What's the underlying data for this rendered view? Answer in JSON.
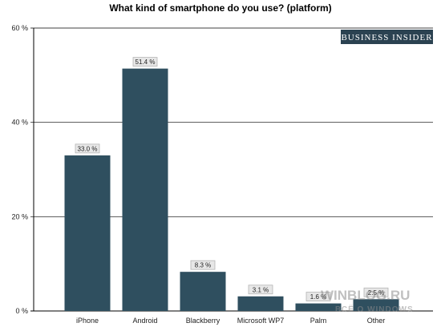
{
  "chart_data": {
    "type": "bar",
    "title": "What kind of smartphone do you use? (platform)",
    "xlabel": "",
    "ylabel": "",
    "ylim": [
      0,
      60
    ],
    "y_ticks": [
      "0 %",
      "20 %",
      "40 %",
      "60 %"
    ],
    "y_tick_values": [
      0,
      20,
      40,
      60
    ],
    "grid": true,
    "categories": [
      "iPhone",
      "Android",
      "Blackberry",
      "Microsoft WP7",
      "Palm",
      "Other"
    ],
    "values": [
      33.0,
      51.4,
      8.3,
      3.1,
      1.6,
      2.5
    ],
    "data_labels": [
      "33.0 %",
      "51.4 %",
      "8.3 %",
      "3.1 %",
      "1.6 %",
      "2.5 %"
    ]
  },
  "branding": {
    "logo_text": "BUSINESS INSIDER"
  },
  "watermark": {
    "line1": "WINBLOG.RU",
    "line2": "ВСЁ О WINDOWS"
  },
  "colors": {
    "bar": "#2f4f5f",
    "brand": "#2b4251"
  }
}
